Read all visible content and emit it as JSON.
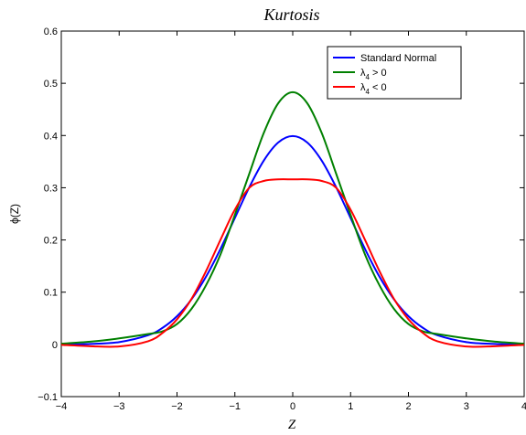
{
  "chart_data": {
    "type": "line",
    "title": "Kurtosis",
    "xlabel": "Z",
    "ylabel": "ϕ(Z)",
    "xlim": [
      -4,
      4
    ],
    "ylim": [
      -0.1,
      0.6
    ],
    "xticks": [
      -4,
      -3,
      -2,
      -1,
      0,
      1,
      2,
      3,
      4
    ],
    "yticks": [
      -0.1,
      0,
      0.1,
      0.2,
      0.3,
      0.4,
      0.5,
      0.6
    ],
    "xtick_labels": [
      "−4",
      "−3",
      "−2",
      "−1",
      "0",
      "1",
      "2",
      "3",
      "4"
    ],
    "ytick_labels": [
      "−0.1",
      "0",
      "0.1",
      "0.2",
      "0.3",
      "0.4",
      "0.5",
      "0.6"
    ],
    "grid": false,
    "legend_position": "top-right",
    "x": [
      -4,
      -3.5,
      -3,
      -2.5,
      -2.25,
      -2,
      -1.75,
      -1.5,
      -1.25,
      -1,
      -0.75,
      -0.5,
      -0.25,
      0,
      0.25,
      0.5,
      0.75,
      1,
      1.25,
      1.5,
      1.75,
      2,
      2.25,
      2.5,
      3,
      3.5,
      4
    ],
    "series": [
      {
        "name": "Standard Normal",
        "legend_text": "Standard Normal",
        "legend_sub": "",
        "legend_rest": "",
        "color": "#0000ff",
        "values": [
          0.0001,
          0.0009,
          0.0044,
          0.0175,
          0.0317,
          0.054,
          0.0863,
          0.1295,
          0.1826,
          0.242,
          0.3011,
          0.3521,
          0.3867,
          0.3989,
          0.3867,
          0.3521,
          0.3011,
          0.242,
          0.1826,
          0.1295,
          0.0863,
          0.054,
          0.0317,
          0.0175,
          0.0044,
          0.0009,
          0.0001
        ]
      },
      {
        "name": "λ4 > 0",
        "legend_text": "λ",
        "legend_sub": "4",
        "legend_rest": " > 0",
        "color": "#008000",
        "values": [
          0.0014,
          0.0052,
          0.0115,
          0.0198,
          0.025,
          0.039,
          0.068,
          0.113,
          0.172,
          0.248,
          0.327,
          0.405,
          0.462,
          0.483,
          0.462,
          0.405,
          0.327,
          0.248,
          0.172,
          0.113,
          0.068,
          0.039,
          0.025,
          0.0198,
          0.0115,
          0.0052,
          0.0014
        ]
      },
      {
        "name": "λ4 < 0",
        "legend_text": "λ",
        "legend_sub": "4",
        "legend_rest": " < 0",
        "color": "#ff0000",
        "values": [
          -0.0009,
          -0.0035,
          -0.004,
          0.006,
          0.022,
          0.048,
          0.087,
          0.14,
          0.2,
          0.258,
          0.3,
          0.313,
          0.316,
          0.316,
          0.316,
          0.313,
          0.3,
          0.258,
          0.2,
          0.14,
          0.087,
          0.048,
          0.022,
          0.006,
          -0.004,
          -0.0035,
          -0.0009
        ]
      }
    ]
  }
}
